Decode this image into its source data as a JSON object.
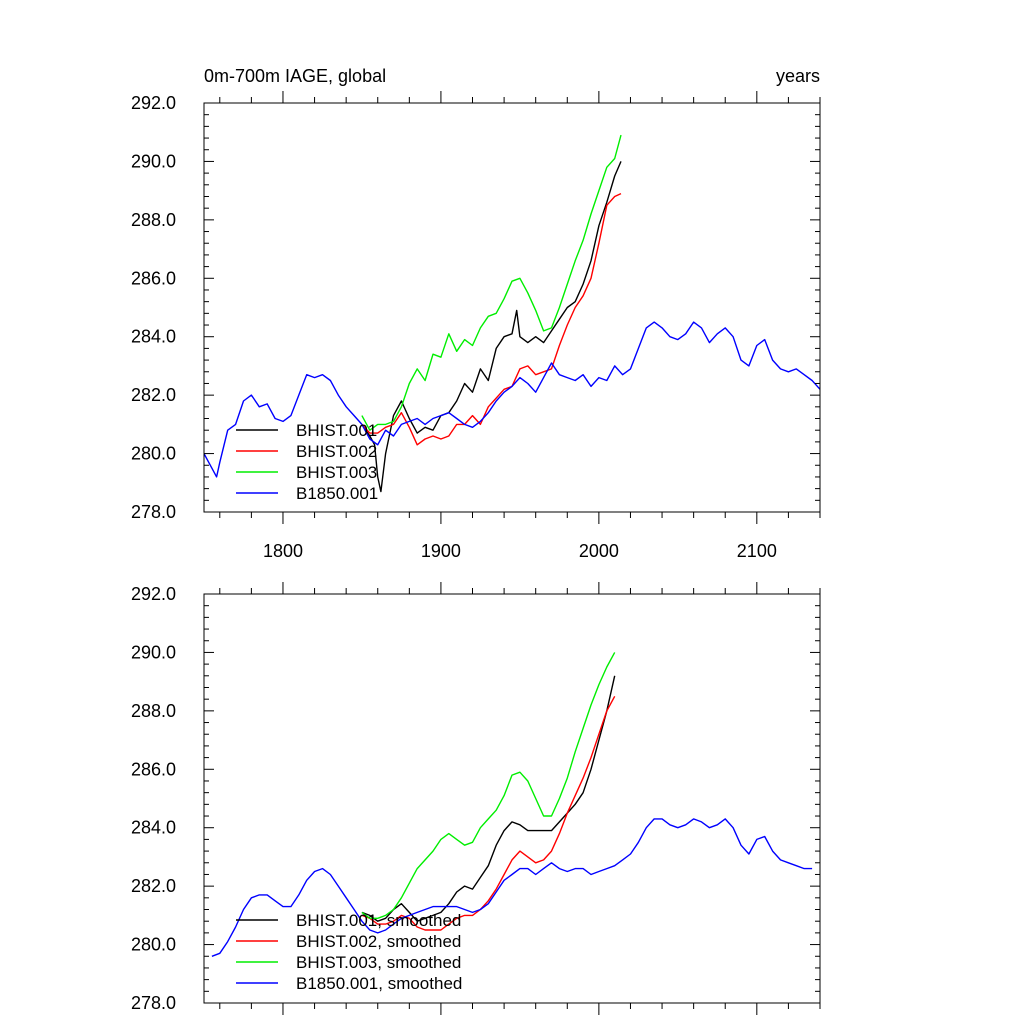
{
  "chart_data": [
    {
      "type": "line",
      "title": "0m-700m IAGE, global",
      "right_title": "years",
      "xlim": [
        1750,
        2140
      ],
      "ylim": [
        278,
        292
      ],
      "xticks": [
        1800,
        1900,
        2000,
        2100
      ],
      "xtick_labels": [
        "1800",
        "1900",
        "2000",
        "2100"
      ],
      "yticks": [
        278,
        280,
        282,
        284,
        286,
        288,
        290,
        292
      ],
      "ytick_labels": [
        "278.0",
        "280.0",
        "282.0",
        "284.0",
        "286.0",
        "288.0",
        "290.0",
        "292.0"
      ],
      "legend_position": "lower-left",
      "series": [
        {
          "name": "BHIST.001",
          "color": "#000000",
          "x": [
            1850,
            1855,
            1858,
            1860,
            1862,
            1865,
            1870,
            1875,
            1880,
            1885,
            1890,
            1895,
            1900,
            1905,
            1910,
            1915,
            1920,
            1925,
            1930,
            1935,
            1940,
            1945,
            1948,
            1950,
            1955,
            1960,
            1965,
            1970,
            1975,
            1980,
            1985,
            1990,
            1995,
            2000,
            2005,
            2010,
            2014
          ],
          "y": [
            281.0,
            280.6,
            280.3,
            279.2,
            278.7,
            280.0,
            281.3,
            281.8,
            281.2,
            280.7,
            280.9,
            280.8,
            281.3,
            281.4,
            281.8,
            282.4,
            282.1,
            282.9,
            282.5,
            283.6,
            284.0,
            284.1,
            284.9,
            284.0,
            283.8,
            284.0,
            283.8,
            284.2,
            284.6,
            285.0,
            285.2,
            285.8,
            286.6,
            287.8,
            288.6,
            289.5,
            290.0
          ]
        },
        {
          "name": "BHIST.002",
          "color": "#ff0000",
          "x": [
            1850,
            1855,
            1860,
            1865,
            1870,
            1875,
            1880,
            1885,
            1890,
            1895,
            1900,
            1905,
            1910,
            1915,
            1920,
            1925,
            1930,
            1935,
            1940,
            1945,
            1950,
            1955,
            1960,
            1965,
            1970,
            1975,
            1980,
            1985,
            1990,
            1995,
            2000,
            2005,
            2010,
            2014
          ],
          "y": [
            281.0,
            280.7,
            280.7,
            280.9,
            281.0,
            281.4,
            280.9,
            280.3,
            280.5,
            280.6,
            280.5,
            280.6,
            281.0,
            281.0,
            281.3,
            281.0,
            281.6,
            281.9,
            282.2,
            282.3,
            282.9,
            283.0,
            282.7,
            282.8,
            282.9,
            283.7,
            284.4,
            285.0,
            285.4,
            286.0,
            287.2,
            288.5,
            288.8,
            288.9
          ]
        },
        {
          "name": "BHIST.003",
          "color": "#00ee00",
          "x": [
            1850,
            1855,
            1860,
            1865,
            1870,
            1875,
            1880,
            1885,
            1890,
            1895,
            1900,
            1905,
            1910,
            1915,
            1920,
            1925,
            1930,
            1935,
            1940,
            1945,
            1950,
            1955,
            1960,
            1965,
            1970,
            1975,
            1980,
            1985,
            1990,
            1995,
            2000,
            2005,
            2010,
            2014
          ],
          "y": [
            281.3,
            280.8,
            281.0,
            281.0,
            281.1,
            281.6,
            282.4,
            282.9,
            282.5,
            283.4,
            283.3,
            284.1,
            283.5,
            283.9,
            283.7,
            284.3,
            284.7,
            284.8,
            285.3,
            285.9,
            286.0,
            285.5,
            284.9,
            284.2,
            284.3,
            285.0,
            285.8,
            286.6,
            287.3,
            288.2,
            289.0,
            289.8,
            290.1,
            290.9
          ]
        },
        {
          "name": "B1850.001",
          "color": "#0000ff",
          "x": [
            1750,
            1755,
            1758,
            1760,
            1765,
            1770,
            1775,
            1780,
            1785,
            1790,
            1795,
            1800,
            1805,
            1810,
            1815,
            1820,
            1825,
            1830,
            1835,
            1840,
            1845,
            1850,
            1855,
            1860,
            1865,
            1870,
            1875,
            1880,
            1885,
            1890,
            1895,
            1900,
            1905,
            1910,
            1915,
            1920,
            1925,
            1930,
            1935,
            1940,
            1945,
            1950,
            1955,
            1960,
            1965,
            1970,
            1975,
            1980,
            1985,
            1990,
            1995,
            2000,
            2005,
            2010,
            2015,
            2020,
            2025,
            2030,
            2035,
            2040,
            2045,
            2050,
            2055,
            2060,
            2065,
            2070,
            2075,
            2080,
            2085,
            2090,
            2095,
            2100,
            2105,
            2110,
            2115,
            2120,
            2125,
            2130,
            2135,
            2140
          ],
          "y": [
            280.0,
            279.5,
            279.2,
            279.7,
            280.8,
            281.0,
            281.8,
            282.0,
            281.6,
            281.7,
            281.2,
            281.1,
            281.3,
            282.0,
            282.7,
            282.6,
            282.7,
            282.5,
            282.0,
            281.6,
            281.3,
            281.0,
            280.5,
            280.3,
            280.8,
            280.6,
            281.0,
            281.1,
            281.2,
            281.0,
            281.2,
            281.3,
            281.4,
            281.2,
            281.0,
            280.9,
            281.1,
            281.4,
            281.8,
            282.1,
            282.3,
            282.6,
            282.4,
            282.1,
            282.6,
            283.1,
            282.7,
            282.6,
            282.5,
            282.7,
            282.3,
            282.6,
            282.5,
            283.0,
            282.7,
            282.9,
            283.6,
            284.3,
            284.5,
            284.3,
            284.0,
            283.9,
            284.1,
            284.5,
            284.3,
            283.8,
            284.1,
            284.3,
            284.0,
            283.2,
            283.0,
            283.7,
            283.9,
            283.2,
            282.9,
            282.8,
            282.9,
            282.7,
            282.5,
            282.2
          ]
        }
      ]
    },
    {
      "type": "line",
      "title": "",
      "xlim": [
        1750,
        2140
      ],
      "ylim": [
        278,
        292
      ],
      "xticks": [
        1800,
        1900,
        2000,
        2100
      ],
      "yticks": [
        278,
        280,
        282,
        284,
        286,
        288,
        290,
        292
      ],
      "ytick_labels": [
        "278.0",
        "280.0",
        "282.0",
        "284.0",
        "286.0",
        "288.0",
        "290.0",
        "292.0"
      ],
      "legend_position": "lower-left",
      "series": [
        {
          "name": "BHIST.001, smoothed",
          "color": "#000000",
          "x": [
            1850,
            1855,
            1860,
            1865,
            1870,
            1875,
            1880,
            1885,
            1890,
            1895,
            1900,
            1905,
            1910,
            1915,
            1920,
            1925,
            1930,
            1935,
            1940,
            1945,
            1950,
            1955,
            1960,
            1965,
            1970,
            1975,
            1980,
            1985,
            1990,
            1995,
            2000,
            2005,
            2010
          ],
          "y": [
            281.1,
            281.0,
            280.8,
            280.9,
            281.2,
            281.4,
            281.1,
            280.8,
            280.9,
            281.0,
            281.1,
            281.4,
            281.8,
            282.0,
            281.9,
            282.3,
            282.7,
            283.4,
            283.9,
            284.2,
            284.1,
            283.9,
            283.9,
            283.9,
            283.9,
            284.2,
            284.5,
            284.8,
            285.2,
            286.0,
            287.0,
            288.0,
            289.2
          ]
        },
        {
          "name": "BHIST.002, smoothed",
          "color": "#ff0000",
          "x": [
            1850,
            1855,
            1860,
            1865,
            1870,
            1875,
            1880,
            1885,
            1890,
            1895,
            1900,
            1905,
            1910,
            1915,
            1920,
            1925,
            1930,
            1935,
            1940,
            1945,
            1950,
            1955,
            1960,
            1965,
            1970,
            1975,
            1980,
            1985,
            1990,
            1995,
            2000,
            2005,
            2010
          ],
          "y": [
            281.0,
            280.9,
            280.7,
            280.7,
            280.8,
            281.0,
            280.9,
            280.6,
            280.5,
            280.5,
            280.5,
            280.7,
            280.9,
            281.0,
            281.0,
            281.2,
            281.5,
            281.9,
            282.4,
            282.9,
            283.2,
            283.0,
            282.8,
            282.9,
            283.2,
            283.8,
            284.5,
            285.1,
            285.7,
            286.4,
            287.2,
            288.0,
            288.5
          ]
        },
        {
          "name": "BHIST.003, smoothed",
          "color": "#00ee00",
          "x": [
            1850,
            1855,
            1860,
            1865,
            1870,
            1875,
            1880,
            1885,
            1890,
            1895,
            1900,
            1905,
            1910,
            1915,
            1920,
            1925,
            1930,
            1935,
            1940,
            1945,
            1950,
            1955,
            1960,
            1965,
            1970,
            1975,
            1980,
            1985,
            1990,
            1995,
            2000,
            2005,
            2010
          ],
          "y": [
            281.1,
            280.9,
            280.9,
            281.0,
            281.2,
            281.6,
            282.1,
            282.6,
            282.9,
            283.2,
            283.6,
            283.8,
            283.6,
            283.4,
            283.5,
            284.0,
            284.3,
            284.6,
            285.1,
            285.8,
            285.9,
            285.6,
            285.0,
            284.4,
            284.4,
            285.0,
            285.7,
            286.6,
            287.4,
            288.2,
            288.9,
            289.5,
            290.0
          ]
        },
        {
          "name": "B1850.001, smoothed",
          "color": "#0000ff",
          "x": [
            1755,
            1760,
            1765,
            1770,
            1775,
            1780,
            1785,
            1790,
            1795,
            1800,
            1805,
            1810,
            1815,
            1820,
            1825,
            1830,
            1835,
            1840,
            1845,
            1850,
            1855,
            1860,
            1865,
            1870,
            1875,
            1880,
            1885,
            1890,
            1895,
            1900,
            1905,
            1910,
            1915,
            1920,
            1925,
            1930,
            1935,
            1940,
            1945,
            1950,
            1955,
            1960,
            1965,
            1970,
            1975,
            1980,
            1985,
            1990,
            1995,
            2000,
            2005,
            2010,
            2015,
            2020,
            2025,
            2030,
            2035,
            2040,
            2045,
            2050,
            2055,
            2060,
            2065,
            2070,
            2075,
            2080,
            2085,
            2090,
            2095,
            2100,
            2105,
            2110,
            2115,
            2120,
            2125,
            2130,
            2135
          ],
          "y": [
            279.6,
            279.7,
            280.1,
            280.6,
            281.2,
            281.6,
            281.7,
            281.7,
            281.5,
            281.3,
            281.3,
            281.7,
            282.2,
            282.5,
            282.6,
            282.4,
            282.0,
            281.6,
            281.2,
            280.8,
            280.5,
            280.4,
            280.5,
            280.7,
            280.9,
            281.0,
            281.1,
            281.2,
            281.3,
            281.3,
            281.3,
            281.3,
            281.2,
            281.1,
            281.2,
            281.4,
            281.8,
            282.2,
            282.4,
            282.6,
            282.6,
            282.4,
            282.6,
            282.8,
            282.6,
            282.5,
            282.6,
            282.6,
            282.4,
            282.5,
            282.6,
            282.7,
            282.9,
            283.1,
            283.5,
            284.0,
            284.3,
            284.3,
            284.1,
            284.0,
            284.1,
            284.3,
            284.2,
            284.0,
            284.1,
            284.3,
            284.0,
            283.4,
            283.1,
            283.6,
            283.7,
            283.2,
            282.9,
            282.8,
            282.7,
            282.6,
            282.6
          ]
        }
      ]
    }
  ]
}
